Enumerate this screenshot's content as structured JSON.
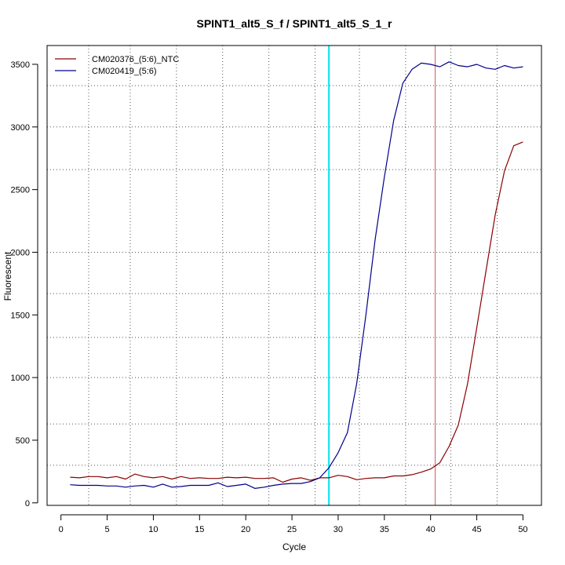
{
  "chart_data": {
    "type": "line",
    "title": "SPINT1_alt5_S_f / SPINT1_alt5_S_1_r",
    "xlabel": "Cycle",
    "ylabel": "Fluorescent",
    "xlim": [
      -1.5,
      52
    ],
    "ylim": [
      -20,
      3650
    ],
    "xticks": [
      0,
      5,
      10,
      15,
      20,
      25,
      30,
      35,
      40,
      45,
      50
    ],
    "yticks": [
      0,
      500,
      1000,
      1500,
      2000,
      2500,
      3000,
      3500
    ],
    "grid": true,
    "vgrid": [
      3,
      7.5,
      12.5,
      17.5,
      22.5,
      27.5,
      32.3,
      37.3,
      42.2,
      47.2
    ],
    "hgrid": [
      -30,
      300,
      630,
      1000,
      1320,
      1670,
      2000,
      2660,
      3000,
      3330,
      3690
    ],
    "legend_position": "top-left",
    "markers": [
      {
        "x": 29,
        "color": "#00e5ee"
      },
      {
        "x": 40.5,
        "color": "#cd5c5c"
      }
    ],
    "series": [
      {
        "name": "CM020376_(5:6)_NTC",
        "color": "#8b0000",
        "x": [
          1,
          2,
          3,
          4,
          5,
          6,
          7,
          8,
          9,
          10,
          11,
          12,
          13,
          14,
          15,
          16,
          17,
          18,
          19,
          20,
          21,
          22,
          23,
          24,
          25,
          26,
          27,
          28,
          29,
          30,
          31,
          32,
          33,
          34,
          35,
          36,
          37,
          38,
          39,
          40,
          41,
          42,
          43,
          44,
          45,
          46,
          47,
          48,
          49,
          50
        ],
        "values": [
          205,
          200,
          210,
          210,
          200,
          210,
          190,
          230,
          210,
          200,
          210,
          190,
          210,
          195,
          200,
          195,
          195,
          205,
          200,
          205,
          195,
          195,
          200,
          165,
          190,
          200,
          180,
          200,
          200,
          220,
          210,
          185,
          195,
          200,
          200,
          215,
          215,
          225,
          245,
          270,
          320,
          450,
          620,
          950,
          1400,
          1850,
          2300,
          2650,
          2850,
          2880
        ]
      },
      {
        "name": "CM020419_(5:6)",
        "color": "#00008b",
        "x": [
          1,
          2,
          3,
          4,
          5,
          6,
          7,
          8,
          9,
          10,
          11,
          12,
          13,
          14,
          15,
          16,
          17,
          18,
          19,
          20,
          21,
          22,
          23,
          24,
          25,
          26,
          27,
          28,
          29,
          30,
          31,
          32,
          33,
          34,
          35,
          36,
          37,
          38,
          39,
          40,
          41,
          42,
          43,
          44,
          45,
          46,
          47,
          48,
          49,
          50
        ],
        "values": [
          145,
          140,
          140,
          140,
          135,
          135,
          125,
          135,
          140,
          125,
          150,
          125,
          130,
          140,
          140,
          140,
          160,
          130,
          140,
          150,
          115,
          125,
          140,
          150,
          155,
          155,
          170,
          200,
          280,
          400,
          560,
          950,
          1500,
          2100,
          2600,
          3050,
          3350,
          3460,
          3510,
          3500,
          3480,
          3520,
          3490,
          3480,
          3500,
          3470,
          3460,
          3490,
          3470,
          3480
        ]
      }
    ]
  }
}
